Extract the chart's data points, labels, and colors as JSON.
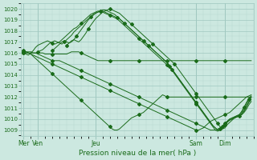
{
  "title": "Pression niveau de la mer( hPa )",
  "ylim": [
    1008.5,
    1020.5
  ],
  "yticks": [
    1009,
    1010,
    1011,
    1012,
    1013,
    1014,
    1015,
    1016,
    1017,
    1018,
    1019,
    1020
  ],
  "xtick_labels": [
    "Mer",
    "Ven",
    "Jeu",
    "Sam",
    "Dim"
  ],
  "xtick_positions": [
    0,
    6,
    30,
    72,
    84
  ],
  "line_color": "#1a6b1a",
  "bg_color": "#cce8e0",
  "grid_color_major": "#a0c8c0",
  "grid_color_minor": "#b8d8d0",
  "total_points": 96,
  "series": [
    {
      "start": 0,
      "data": [
        1016.0,
        1015.9,
        1015.8,
        1016.0,
        1016.2,
        1016.5,
        1016.7,
        1016.8,
        1016.9,
        1017.0,
        1017.1,
        1017.0,
        1016.9,
        1016.8,
        1016.9,
        1017.0,
        1017.2,
        1017.4,
        1017.6,
        1017.8,
        1018.0,
        1018.2,
        1018.3,
        1018.5,
        1018.7,
        1018.9,
        1019.1,
        1019.3,
        1019.5,
        1019.6,
        1019.7,
        1019.8,
        1019.8,
        1019.7,
        1019.6,
        1019.5,
        1019.4,
        1019.3,
        1019.2,
        1019.1,
        1018.9,
        1018.7,
        1018.5,
        1018.3,
        1018.1,
        1017.9,
        1017.7,
        1017.5,
        1017.3,
        1017.1,
        1016.9,
        1016.7,
        1016.5,
        1016.3,
        1016.1,
        1015.9,
        1015.7,
        1015.5,
        1015.3,
        1015.1,
        1014.9,
        1014.7,
        1014.4,
        1014.1,
        1013.8,
        1013.5,
        1013.2,
        1012.9,
        1012.6,
        1012.3,
        1012.0,
        1011.7,
        1011.4,
        1011.1,
        1010.8,
        1010.5,
        1010.2,
        1009.9,
        1009.6,
        1009.3,
        1009.0,
        1008.9,
        1009.0,
        1009.2,
        1009.5,
        1009.7,
        1009.9,
        1010.0,
        1010.1,
        1010.2,
        1010.3,
        1010.4,
        1010.7,
        1011.1,
        1011.5,
        1011.8
      ]
    },
    {
      "start": 6,
      "data": [
        1016.1,
        1016.2,
        1016.3,
        1016.5,
        1016.7,
        1016.9,
        1017.0,
        1017.1,
        1017.0,
        1016.9,
        1016.8,
        1017.0,
        1017.2,
        1017.4,
        1017.6,
        1017.9,
        1018.1,
        1018.3,
        1018.5,
        1018.7,
        1018.9,
        1019.1,
        1019.3,
        1019.5,
        1019.6,
        1019.7,
        1019.8,
        1019.8,
        1019.7,
        1019.6,
        1019.5,
        1019.4,
        1019.3,
        1019.2,
        1019.1,
        1018.9,
        1018.7,
        1018.5,
        1018.3,
        1018.1,
        1017.9,
        1017.7,
        1017.5,
        1017.3,
        1017.1,
        1016.9,
        1016.7,
        1016.5,
        1016.3,
        1016.1,
        1015.9,
        1015.7,
        1015.5,
        1015.3,
        1015.1,
        1014.8,
        1014.5,
        1014.2,
        1013.9,
        1013.6,
        1013.3,
        1013.0,
        1012.7,
        1012.4,
        1012.1,
        1011.8,
        1011.5,
        1011.2,
        1010.9,
        1010.6,
        1010.3,
        1010.0,
        1009.7,
        1009.4,
        1009.2,
        1009.0,
        1009.1,
        1009.3,
        1009.6,
        1009.8,
        1010.0,
        1010.1,
        1010.2,
        1010.3,
        1010.4,
        1010.6,
        1011.0,
        1011.4,
        1011.8,
        1012.0
      ]
    },
    {
      "start": 12,
      "data": [
        1016.2,
        1016.4,
        1016.6,
        1016.8,
        1017.0,
        1017.1,
        1017.0,
        1016.9,
        1017.0,
        1017.2,
        1017.5,
        1017.8,
        1018.1,
        1018.4,
        1018.7,
        1019.0,
        1019.2,
        1019.4,
        1019.6,
        1019.7,
        1019.8,
        1019.9,
        1019.9,
        1019.8,
        1019.7,
        1019.6,
        1019.5,
        1019.3,
        1019.1,
        1018.9,
        1018.7,
        1018.5,
        1018.3,
        1018.1,
        1017.9,
        1017.7,
        1017.5,
        1017.3,
        1017.1,
        1016.9,
        1016.7,
        1016.5,
        1016.3,
        1016.1,
        1015.9,
        1015.7,
        1015.5,
        1015.3,
        1015.1,
        1014.8,
        1014.5,
        1014.2,
        1013.9,
        1013.6,
        1013.3,
        1013.0,
        1012.7,
        1012.4,
        1012.1,
        1011.8,
        1011.5,
        1011.2,
        1010.9,
        1010.6,
        1010.3,
        1010.0,
        1009.7,
        1009.4,
        1009.2,
        1009.0,
        1009.1,
        1009.3,
        1009.6,
        1009.8,
        1010.0,
        1010.1,
        1010.2,
        1010.3,
        1010.4,
        1010.7,
        1011.1,
        1011.5,
        1011.9,
        1012.1
      ]
    },
    {
      "start": 18,
      "data": [
        1016.7,
        1016.9,
        1017.1,
        1017.2,
        1017.1,
        1017.0,
        1017.2,
        1017.5,
        1017.8,
        1018.2,
        1018.5,
        1018.8,
        1019.1,
        1019.3,
        1019.5,
        1019.7,
        1019.8,
        1019.9,
        1020.0,
        1019.9,
        1019.8,
        1019.7,
        1019.6,
        1019.4,
        1019.2,
        1019.0,
        1018.8,
        1018.6,
        1018.4,
        1018.2,
        1018.0,
        1017.8,
        1017.6,
        1017.4,
        1017.2,
        1017.0,
        1016.8,
        1016.6,
        1016.4,
        1016.2,
        1016.0,
        1015.8,
        1015.6,
        1015.4,
        1015.2,
        1015.0,
        1014.7,
        1014.4,
        1014.1,
        1013.8,
        1013.5,
        1013.2,
        1012.9,
        1012.6,
        1012.3,
        1012.0,
        1011.7,
        1011.4,
        1011.1,
        1010.8,
        1010.5,
        1010.2,
        1009.9,
        1009.6,
        1009.3,
        1009.1,
        1009.2,
        1009.5,
        1009.7,
        1009.9,
        1010.1,
        1010.2,
        1010.3,
        1010.5,
        1010.8,
        1011.2,
        1011.6,
        1012.0
      ]
    },
    {
      "start": 0,
      "data": [
        1016.0,
        1016.0,
        1016.0,
        1016.0,
        1016.0,
        1016.0,
        1016.0,
        1016.0,
        1016.0,
        1015.9,
        1015.9,
        1015.9,
        1015.9,
        1015.9,
        1015.9,
        1015.9,
        1015.9,
        1015.9,
        1015.9,
        1016.0,
        1016.1,
        1016.1,
        1016.1,
        1016.1,
        1016.0,
        1015.9,
        1015.8,
        1015.7,
        1015.6,
        1015.5,
        1015.4,
        1015.3,
        1015.3,
        1015.3,
        1015.3,
        1015.3,
        1015.3,
        1015.3,
        1015.3,
        1015.3,
        1015.3,
        1015.3,
        1015.3,
        1015.3,
        1015.3,
        1015.3,
        1015.3,
        1015.3,
        1015.3,
        1015.3,
        1015.3,
        1015.3,
        1015.3,
        1015.3,
        1015.3,
        1015.3,
        1015.3,
        1015.3,
        1015.3,
        1015.3,
        1015.3,
        1015.3,
        1015.3,
        1015.3,
        1015.3,
        1015.3,
        1015.3,
        1015.3,
        1015.3,
        1015.3,
        1015.3,
        1015.3,
        1015.3,
        1015.3,
        1015.3,
        1015.3,
        1015.3,
        1015.3,
        1015.3,
        1015.3,
        1015.3,
        1015.3,
        1015.3,
        1015.3,
        1015.3,
        1015.3,
        1015.3,
        1015.3,
        1015.3,
        1015.3,
        1015.3,
        1015.3,
        1015.3,
        1015.3,
        1015.3,
        1015.3
      ]
    },
    {
      "start": 0,
      "data": [
        1016.1,
        1016.1,
        1016.1,
        1016.1,
        1016.0,
        1016.0,
        1015.9,
        1015.8,
        1015.7,
        1015.6,
        1015.5,
        1015.4,
        1015.3,
        1015.3,
        1015.3,
        1015.3,
        1015.2,
        1015.1,
        1015.0,
        1014.9,
        1014.8,
        1014.7,
        1014.6,
        1014.5,
        1014.4,
        1014.3,
        1014.2,
        1014.1,
        1014.0,
        1013.9,
        1013.8,
        1013.7,
        1013.6,
        1013.5,
        1013.4,
        1013.3,
        1013.2,
        1013.1,
        1013.0,
        1012.9,
        1012.8,
        1012.7,
        1012.6,
        1012.5,
        1012.4,
        1012.3,
        1012.2,
        1012.1,
        1012.0,
        1011.9,
        1011.8,
        1011.7,
        1011.6,
        1011.5,
        1011.4,
        1011.3,
        1011.2,
        1011.1,
        1011.0,
        1010.9,
        1010.8,
        1010.7,
        1010.6,
        1010.5,
        1010.4,
        1010.3,
        1010.2,
        1010.1,
        1010.0,
        1009.9,
        1009.8,
        1009.7,
        1009.6,
        1009.5,
        1009.4,
        1009.3,
        1009.2,
        1009.1,
        1009.0,
        1009.0,
        1009.0,
        1009.1,
        1009.2,
        1009.4,
        1009.6,
        1009.8,
        1009.9,
        1010.0,
        1010.1,
        1010.2,
        1010.3,
        1010.4,
        1010.6,
        1010.9,
        1011.3,
        1011.6
      ]
    },
    {
      "start": 0,
      "data": [
        1016.1,
        1016.1,
        1016.0,
        1015.9,
        1015.8,
        1015.7,
        1015.6,
        1015.5,
        1015.4,
        1015.3,
        1015.2,
        1015.1,
        1015.0,
        1014.9,
        1014.8,
        1014.7,
        1014.6,
        1014.5,
        1014.4,
        1014.3,
        1014.2,
        1014.1,
        1014.0,
        1013.9,
        1013.8,
        1013.7,
        1013.6,
        1013.5,
        1013.4,
        1013.3,
        1013.2,
        1013.1,
        1013.0,
        1012.9,
        1012.8,
        1012.7,
        1012.6,
        1012.5,
        1012.4,
        1012.3,
        1012.2,
        1012.1,
        1012.0,
        1011.9,
        1011.8,
        1011.7,
        1011.6,
        1011.5,
        1011.4,
        1011.3,
        1011.2,
        1011.1,
        1011.0,
        1010.9,
        1010.8,
        1010.7,
        1010.6,
        1010.5,
        1010.4,
        1010.3,
        1010.2,
        1010.1,
        1010.0,
        1009.9,
        1009.8,
        1009.7,
        1009.6,
        1009.5,
        1009.4,
        1009.3,
        1009.2,
        1009.1,
        1009.0,
        1009.0,
        1009.1,
        1009.2,
        1009.4,
        1009.6,
        1009.8,
        1009.9,
        1010.0,
        1010.1,
        1010.2,
        1010.3,
        1010.4,
        1010.5,
        1010.6,
        1010.8,
        1011.0,
        1011.2,
        1011.4,
        1011.6,
        1011.8,
        1012.0,
        1012.1,
        1012.2
      ]
    },
    {
      "start": 0,
      "data": [
        1016.2,
        1016.1,
        1016.0,
        1015.9,
        1015.7,
        1015.5,
        1015.3,
        1015.1,
        1014.9,
        1014.7,
        1014.5,
        1014.3,
        1014.1,
        1013.9,
        1013.7,
        1013.5,
        1013.3,
        1013.1,
        1012.9,
        1012.7,
        1012.5,
        1012.3,
        1012.1,
        1011.9,
        1011.7,
        1011.5,
        1011.3,
        1011.1,
        1010.9,
        1010.7,
        1010.5,
        1010.3,
        1010.1,
        1009.9,
        1009.7,
        1009.5,
        1009.3,
        1009.1,
        1009.0,
        1009.0,
        1009.1,
        1009.3,
        1009.5,
        1009.7,
        1009.9,
        1010.1,
        1010.2,
        1010.3,
        1010.4,
        1010.5,
        1010.6,
        1010.8,
        1011.0,
        1011.2,
        1011.4,
        1011.6,
        1011.8,
        1012.0,
        1012.2,
        1012.1,
        1012.0,
        1012.0,
        1012.0,
        1012.0,
        1012.0,
        1012.0,
        1012.0,
        1012.0,
        1012.0,
        1012.0,
        1012.0,
        1012.0,
        1012.0,
        1012.0,
        1012.0,
        1012.0,
        1012.0,
        1012.0,
        1012.0,
        1012.0,
        1012.0,
        1012.0,
        1012.0,
        1012.0,
        1012.0,
        1012.0,
        1012.0,
        1012.0,
        1012.0,
        1012.0,
        1012.0,
        1012.0,
        1012.0,
        1012.0,
        1012.0,
        1012.0
      ]
    }
  ],
  "marker_style": "D",
  "marker_size": 2.0,
  "linewidth": 0.7
}
